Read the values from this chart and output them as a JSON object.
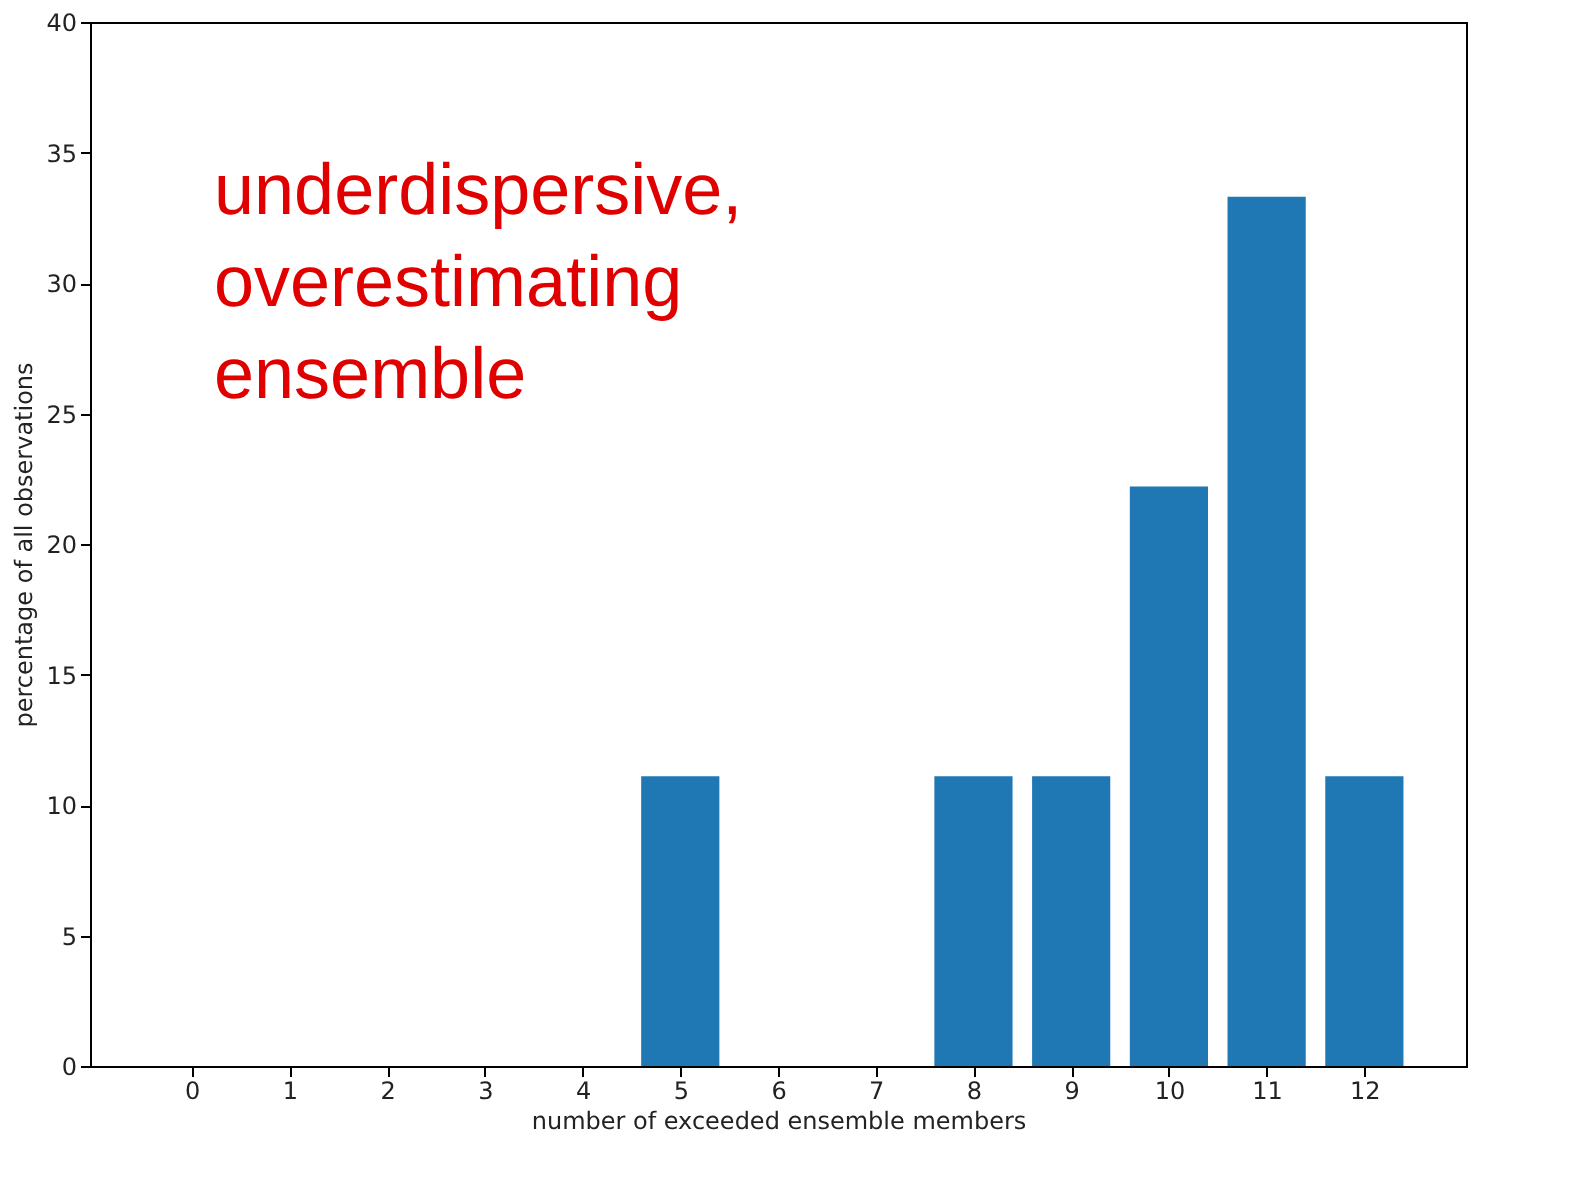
{
  "chart_data": {
    "type": "bar",
    "xlabel": "number of exceeded ensemble members",
    "ylabel": "percentage of all observations",
    "x": [
      0,
      1,
      2,
      3,
      4,
      5,
      6,
      7,
      8,
      9,
      10,
      11,
      12
    ],
    "values": [
      0,
      0,
      0,
      0,
      0,
      11.1,
      0,
      0,
      11.1,
      11.1,
      22.2,
      33.3,
      11.1
    ],
    "color": "#1f77b4",
    "xlim": [
      -1.04,
      13.04
    ],
    "xticks": [
      0,
      1,
      2,
      3,
      4,
      5,
      6,
      7,
      8,
      9,
      10,
      11,
      12
    ],
    "ylim": [
      0,
      40
    ],
    "yticks": [
      0,
      5,
      10,
      15,
      20,
      25,
      30,
      35,
      40
    ],
    "grid": false,
    "annotations": [
      "underdispersive, overestimating ensemble"
    ]
  }
}
